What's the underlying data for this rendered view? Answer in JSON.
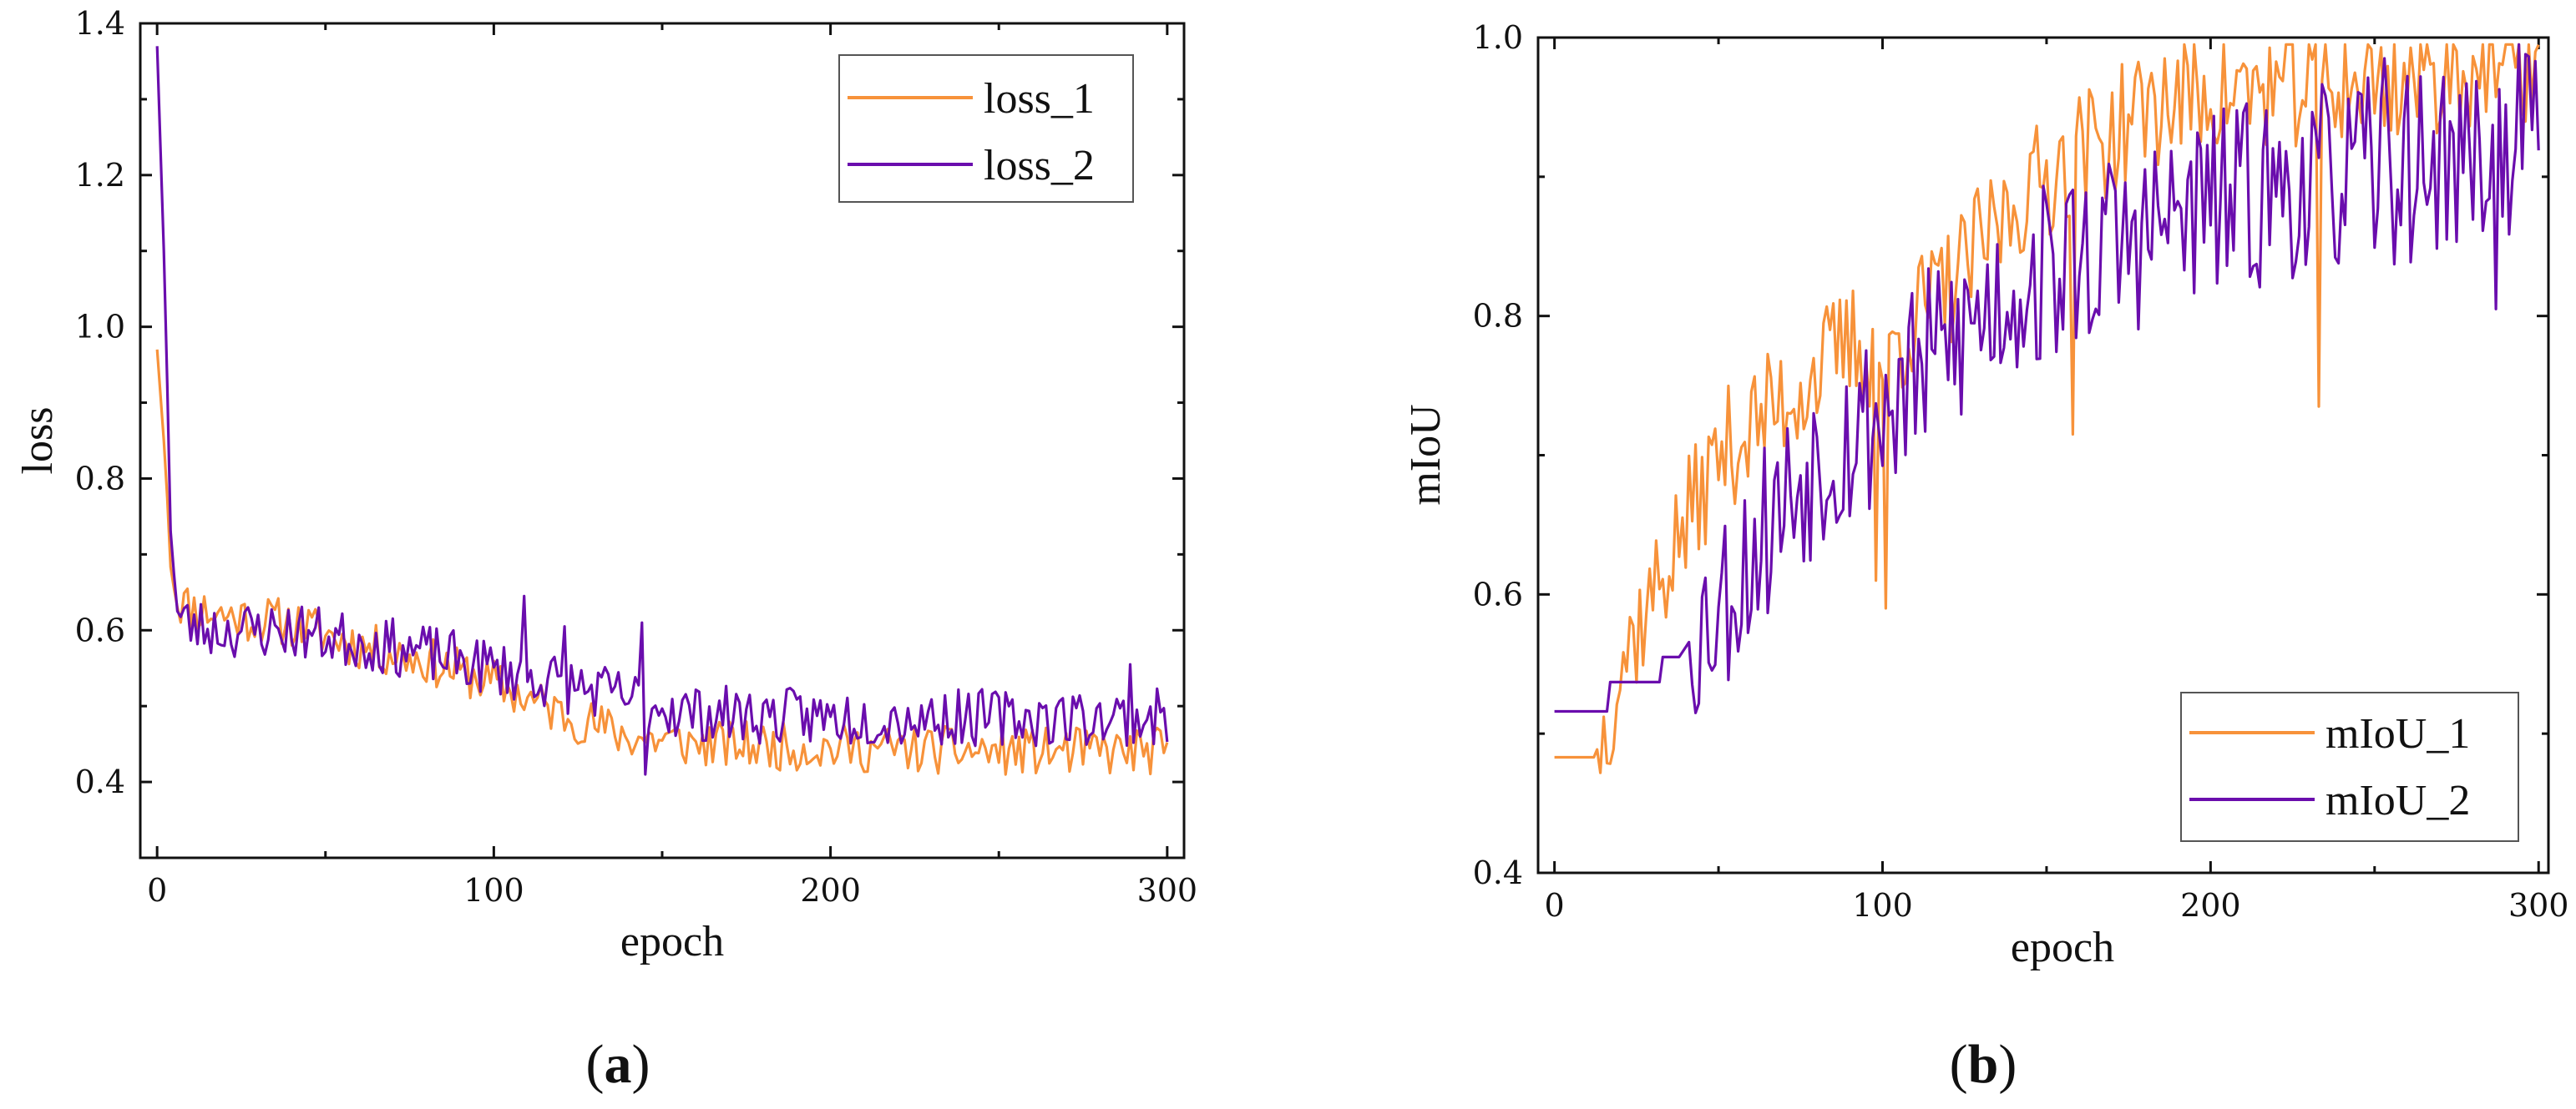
{
  "colors": {
    "series_1": "#F7923A",
    "series_2": "#6A0DAD"
  },
  "chart_data": [
    {
      "type": "line",
      "panel": "a",
      "caption": "(a)",
      "caption_letter": "a",
      "xlabel": "epoch",
      "ylabel": "loss",
      "xlim": [
        -5,
        305
      ],
      "ylim": [
        0.3,
        1.4
      ],
      "xticks": [
        0,
        100,
        200,
        300
      ],
      "xtick_labels": [
        "0",
        "100",
        "200",
        "300"
      ],
      "yticks": [
        0.4,
        0.6,
        0.8,
        1.0,
        1.2,
        1.4
      ],
      "ytick_labels": [
        "0.4",
        "0.6",
        "0.8",
        "1.0",
        "1.2",
        "1.4"
      ],
      "legend_position": "top-right",
      "series": [
        {
          "name": "loss_1",
          "color": "#F7923A",
          "anchors": [
            [
              0,
              0.97
            ],
            [
              2,
              0.85
            ],
            [
              4,
              0.7
            ],
            [
              6,
              0.64
            ],
            [
              10,
              0.63
            ],
            [
              20,
              0.62
            ],
            [
              40,
              0.61
            ],
            [
              60,
              0.58
            ],
            [
              80,
              0.56
            ],
            [
              100,
              0.53
            ],
            [
              120,
              0.49
            ],
            [
              140,
              0.46
            ],
            [
              160,
              0.45
            ],
            [
              200,
              0.445
            ],
            [
              250,
              0.44
            ],
            [
              300,
              0.44
            ]
          ],
          "noise": 0.032,
          "seed": 11,
          "spikes": []
        },
        {
          "name": "loss_2",
          "color": "#6A0DAD",
          "anchors": [
            [
              0,
              1.37
            ],
            [
              2,
              1.1
            ],
            [
              4,
              0.75
            ],
            [
              6,
              0.62
            ],
            [
              10,
              0.605
            ],
            [
              20,
              0.6
            ],
            [
              40,
              0.6
            ],
            [
              60,
              0.585
            ],
            [
              80,
              0.57
            ],
            [
              100,
              0.55
            ],
            [
              120,
              0.53
            ],
            [
              140,
              0.51
            ],
            [
              150,
              0.5
            ],
            [
              160,
              0.49
            ],
            [
              200,
              0.485
            ],
            [
              250,
              0.485
            ],
            [
              300,
              0.485
            ]
          ],
          "noise": 0.038,
          "seed": 23,
          "spikes": [
            [
              109,
              0.645
            ],
            [
              121,
              0.605
            ],
            [
              144,
              0.61
            ],
            [
              145,
              0.41
            ],
            [
              289,
              0.555
            ]
          ]
        }
      ]
    },
    {
      "type": "line",
      "panel": "b",
      "caption": "(b)",
      "caption_letter": "b",
      "xlabel": "epoch",
      "ylabel": "mIoU",
      "xlim": [
        -5,
        303
      ],
      "ylim": [
        0.4,
        1.0
      ],
      "xticks": [
        0,
        100,
        200,
        300
      ],
      "xtick_labels": [
        "0",
        "100",
        "200",
        "300"
      ],
      "yticks": [
        0.4,
        0.6,
        0.8,
        1.0
      ],
      "ytick_labels": [
        "0.4",
        "0.6",
        "0.8",
        "1.0"
      ],
      "legend_position": "bottom-right",
      "series": [
        {
          "name": "mIoU_1",
          "color": "#F7923A",
          "anchors": [
            [
              0,
              0.483
            ],
            [
              12,
              0.483
            ],
            [
              15,
              0.5
            ],
            [
              20,
              0.55
            ],
            [
              30,
              0.6
            ],
            [
              40,
              0.65
            ],
            [
              50,
              0.7
            ],
            [
              60,
              0.72
            ],
            [
              70,
              0.74
            ],
            [
              80,
              0.76
            ],
            [
              90,
              0.78
            ],
            [
              100,
              0.77
            ],
            [
              110,
              0.8
            ],
            [
              120,
              0.82
            ],
            [
              130,
              0.85
            ],
            [
              140,
              0.88
            ],
            [
              150,
              0.9
            ],
            [
              160,
              0.92
            ],
            [
              170,
              0.93
            ],
            [
              180,
              0.95
            ],
            [
              200,
              0.96
            ],
            [
              230,
              0.965
            ],
            [
              260,
              0.97
            ],
            [
              280,
              0.98
            ],
            [
              300,
              0.98
            ]
          ],
          "noise": 0.045,
          "seed": 37,
          "noise_start": 14,
          "spikes": [
            [
              98,
              0.61
            ],
            [
              101,
              0.59
            ],
            [
              158,
              0.715
            ],
            [
              233,
              0.735
            ]
          ]
        },
        {
          "name": "mIoU_2",
          "color": "#6A0DAD",
          "anchors": [
            [
              0,
              0.516
            ],
            [
              16,
              0.516
            ],
            [
              17,
              0.537
            ],
            [
              32,
              0.537
            ],
            [
              33,
              0.555
            ],
            [
              38,
              0.555
            ],
            [
              45,
              0.58
            ],
            [
              55,
              0.61
            ],
            [
              65,
              0.65
            ],
            [
              80,
              0.7
            ],
            [
              100,
              0.73
            ],
            [
              120,
              0.78
            ],
            [
              140,
              0.82
            ],
            [
              160,
              0.84
            ],
            [
              180,
              0.86
            ],
            [
              200,
              0.88
            ],
            [
              240,
              0.9
            ],
            [
              270,
              0.91
            ],
            [
              300,
              0.93
            ]
          ],
          "noise": 0.07,
          "seed": 53,
          "noise_start": 42,
          "spikes": [
            [
              287,
              0.805
            ],
            [
              296,
              0.988
            ],
            [
              293,
              0.92
            ],
            [
              253,
              0.985
            ]
          ]
        }
      ]
    }
  ]
}
